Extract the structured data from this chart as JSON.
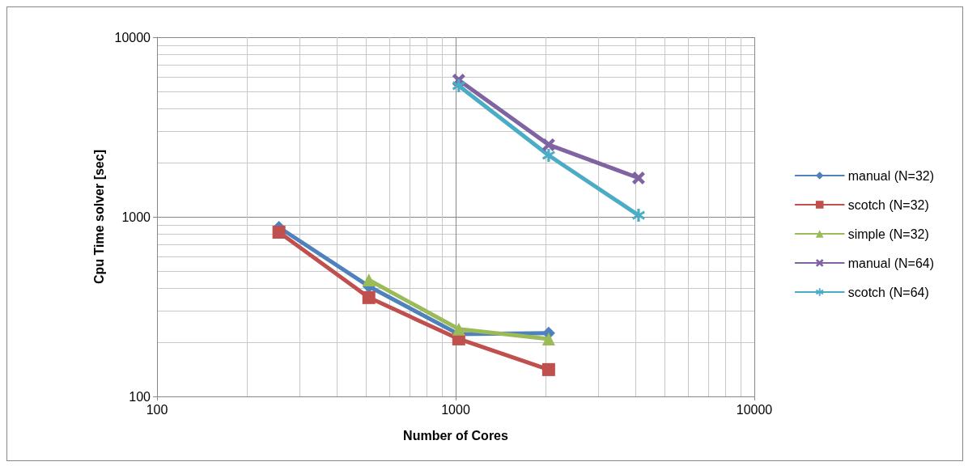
{
  "chart_data": {
    "type": "line",
    "xlabel": "Number of Cores",
    "ylabel": "Cpu Time solver [sec]",
    "log": "xy",
    "xlim": [
      100,
      10000
    ],
    "xticks": [
      100,
      1000,
      10000
    ],
    "ylim": [
      100,
      10000
    ],
    "yticks": [
      100,
      1000,
      10000
    ],
    "grid": true,
    "legend": "right",
    "line_style": "solid",
    "series": [
      {
        "name": "manual (N=32)",
        "color": "#4f81bd",
        "marker": "diamond",
        "x": [
          256,
          512,
          1024,
          2048
        ],
        "values": [
          874,
          410,
          222,
          225
        ]
      },
      {
        "name": "scotch (N=32)",
        "color": "#c0504d",
        "marker": "square",
        "x": [
          256,
          512,
          1024,
          2048
        ],
        "values": [
          821,
          355,
          209,
          141
        ]
      },
      {
        "name": "simple (N=32)",
        "color": "#9bbb59",
        "marker": "triangle",
        "x": [
          512,
          1024,
          2048
        ],
        "values": [
          445,
          237,
          209
        ]
      },
      {
        "name": "manual (N=64)",
        "color": "#8064a2",
        "marker": "cross",
        "x": [
          1024,
          2048,
          4096
        ],
        "values": [
          5770,
          2520,
          1645
        ]
      },
      {
        "name": "scotch (N=64)",
        "color": "#4bacc6",
        "marker": "star",
        "x": [
          1024,
          2048,
          4096
        ],
        "values": [
          5370,
          2200,
          1020
        ]
      }
    ]
  }
}
